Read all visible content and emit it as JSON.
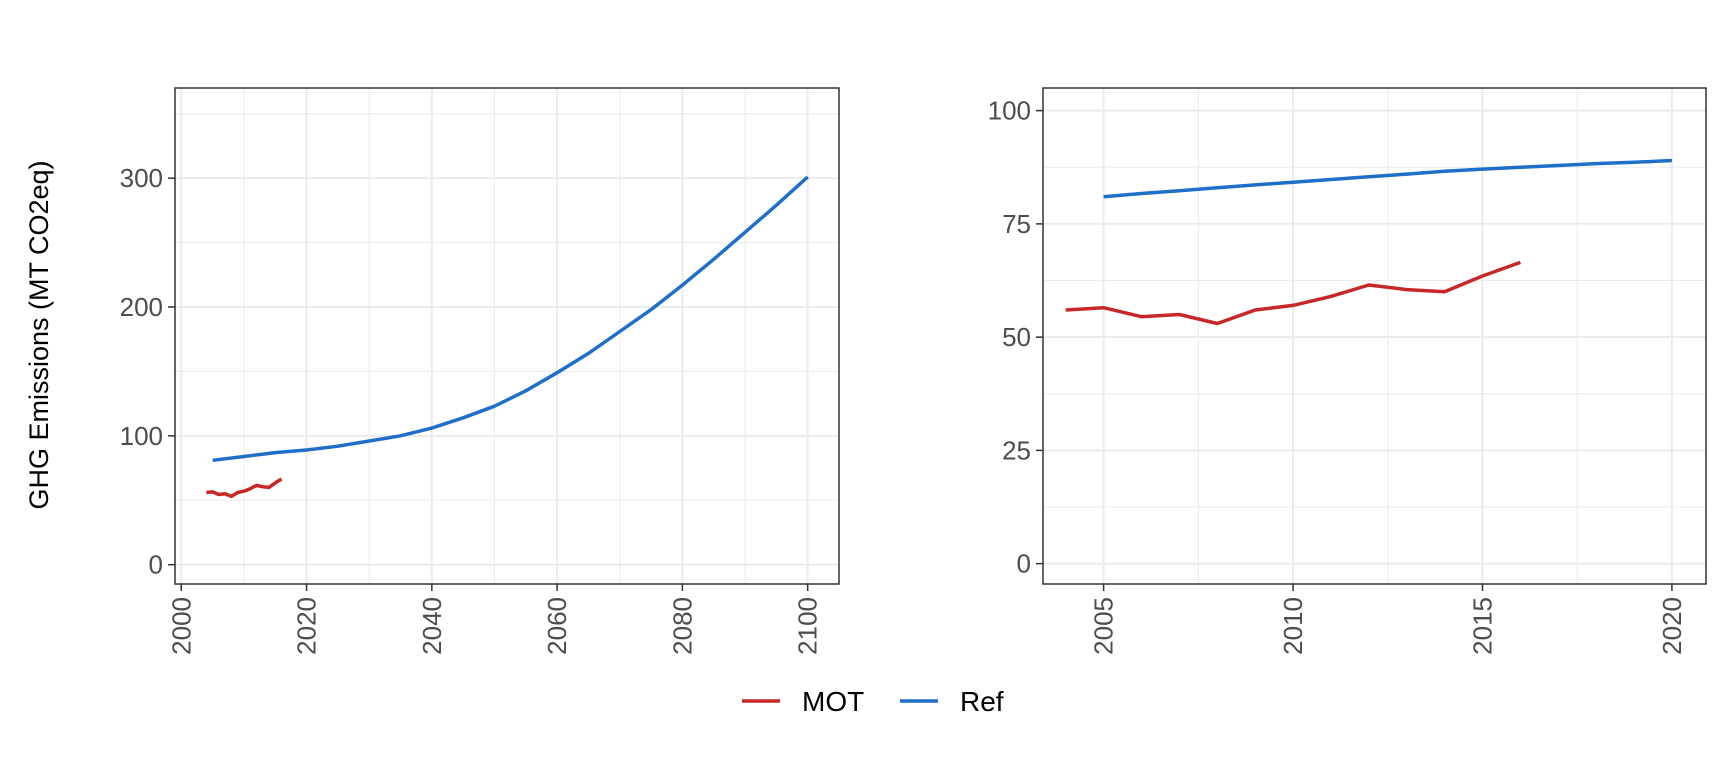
{
  "colors": {
    "MOT": "#c62828",
    "Ref": "#1f6fc9",
    "grid": "#ebebeb",
    "panel_border": "#333333"
  },
  "legend": {
    "position": "bottom",
    "items": [
      "MOT",
      "Ref"
    ]
  },
  "chart_data": [
    {
      "type": "line",
      "ylabel": "GHG Emissions (MT CO2eq)",
      "xlabel": "",
      "xlim": [
        1999,
        2105
      ],
      "ylim": [
        -15,
        370
      ],
      "x_ticks": [
        2000,
        2020,
        2040,
        2060,
        2080,
        2100
      ],
      "y_ticks": [
        0,
        100,
        200,
        300
      ],
      "grid": true,
      "series": [
        {
          "name": "MOT",
          "x": [
            2004,
            2005,
            2006,
            2007,
            2008,
            2009,
            2010,
            2011,
            2012,
            2013,
            2014,
            2015,
            2016
          ],
          "y": [
            56,
            56.5,
            54.5,
            55,
            53,
            56,
            57,
            59,
            61.5,
            60.5,
            60,
            63.5,
            66.5
          ]
        },
        {
          "name": "Ref",
          "x": [
            2005,
            2010,
            2015,
            2020,
            2025,
            2030,
            2035,
            2040,
            2045,
            2050,
            2055,
            2060,
            2065,
            2070,
            2075,
            2080,
            2085,
            2090,
            2095,
            2100
          ],
          "y": [
            81,
            84,
            87,
            89,
            92,
            96,
            100,
            106,
            114,
            123,
            135,
            149,
            164,
            181,
            198,
            217,
            237,
            258,
            279,
            301
          ]
        }
      ]
    },
    {
      "type": "line",
      "ylabel": "",
      "xlabel": "",
      "xlim": [
        2003.4,
        2020.9
      ],
      "ylim": [
        -4.5,
        105
      ],
      "x_ticks": [
        2005,
        2010,
        2015,
        2020
      ],
      "y_ticks": [
        0,
        25,
        50,
        75,
        100
      ],
      "grid": true,
      "series": [
        {
          "name": "MOT",
          "x": [
            2004,
            2005,
            2006,
            2007,
            2008,
            2009,
            2010,
            2011,
            2012,
            2013,
            2014,
            2015,
            2016
          ],
          "y": [
            56,
            56.5,
            54.5,
            55,
            53,
            56,
            57,
            59,
            61.5,
            60.5,
            60,
            63.5,
            66.5
          ]
        },
        {
          "name": "Ref",
          "x": [
            2005,
            2006,
            2007,
            2008,
            2009,
            2010,
            2011,
            2012,
            2013,
            2014,
            2015,
            2016,
            2017,
            2018,
            2019,
            2020
          ],
          "y": [
            81,
            81.7,
            82.3,
            83,
            83.6,
            84.2,
            84.8,
            85.4,
            86,
            86.6,
            87.1,
            87.5,
            87.9,
            88.3,
            88.6,
            89
          ]
        }
      ]
    }
  ]
}
